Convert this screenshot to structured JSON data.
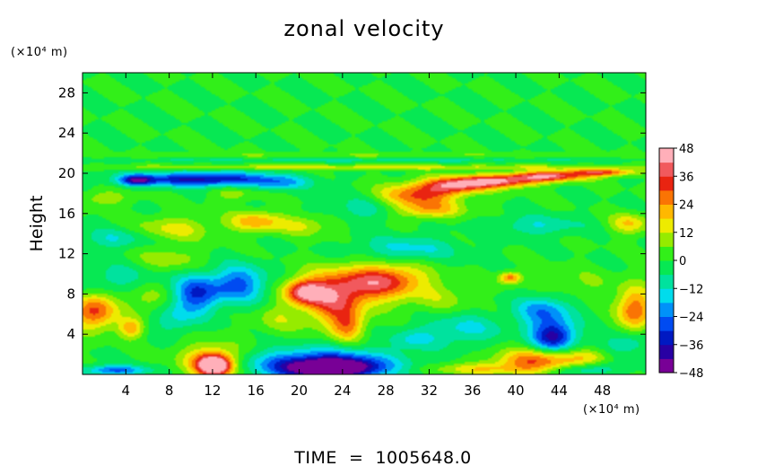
{
  "chart_data": {
    "type": "heatmap",
    "title": "zonal velocity",
    "ylabel": "Height",
    "y_unit": "(×10⁴ m)",
    "x_unit": "(×10⁴ m)",
    "footer": "TIME  =  1005648.0",
    "xlim": [
      0,
      52
    ],
    "ylim": [
      0,
      30
    ],
    "x_ticks": [
      4,
      8,
      12,
      16,
      20,
      24,
      28,
      32,
      36,
      40,
      44,
      48
    ],
    "x_tick_labels": [
      "4",
      "8",
      "12",
      "16",
      "20",
      "24",
      "28",
      "32",
      "36",
      "40",
      "44",
      "48"
    ],
    "y_ticks": [
      4,
      8,
      12,
      16,
      20,
      24,
      28
    ],
    "y_tick_labels": [
      "4",
      "8",
      "12",
      "16",
      "20",
      "24",
      "28"
    ],
    "colorbar": {
      "range": [
        -48,
        48
      ],
      "ticks": [
        48,
        36,
        24,
        12,
        0,
        -12,
        -24,
        -36,
        -48
      ],
      "tick_labels": [
        "48",
        "36",
        "24",
        "12",
        "0",
        "−12",
        "−24",
        "−36",
        "−48"
      ]
    },
    "background_value": 0,
    "features": [
      {
        "x": 23,
        "y": 0.6,
        "rx": 3.5,
        "ry": 0.8,
        "v": -48
      },
      {
        "x": 22,
        "y": 1.0,
        "rx": 7,
        "ry": 1.5,
        "v": -36
      },
      {
        "x": 12.2,
        "y": 0.9,
        "rx": 1.5,
        "ry": 1.0,
        "v": 48
      },
      {
        "x": 12,
        "y": 1.2,
        "rx": 3,
        "ry": 1.8,
        "v": 26
      },
      {
        "x": 3,
        "y": 0.4,
        "rx": 3,
        "ry": 0.5,
        "v": -26
      },
      {
        "x": 42,
        "y": 1.3,
        "rx": 4,
        "ry": 1.2,
        "v": 30
      },
      {
        "x": 36,
        "y": 0.5,
        "rx": 5,
        "ry": 0.6,
        "v": 14
      },
      {
        "x": 46,
        "y": 0.5,
        "rx": 3,
        "ry": 0.6,
        "v": -16
      },
      {
        "x": 47,
        "y": 1.8,
        "rx": 2,
        "ry": 0.8,
        "v": 12
      },
      {
        "x": 25,
        "y": 8.7,
        "rx": 4.5,
        "ry": 2.0,
        "v": 28
      },
      {
        "x": 28.5,
        "y": 9.5,
        "rx": 3.5,
        "ry": 1.5,
        "v": 22
      },
      {
        "x": 23,
        "y": 6.8,
        "rx": 2.5,
        "ry": 2.2,
        "v": 24
      },
      {
        "x": 20.5,
        "y": 8.2,
        "rx": 1.8,
        "ry": 1.2,
        "v": 36
      },
      {
        "x": 24.5,
        "y": 4.8,
        "rx": 1.5,
        "ry": 1.5,
        "v": 22
      },
      {
        "x": 1,
        "y": 6.2,
        "rx": 2,
        "ry": 1.8,
        "v": 32
      },
      {
        "x": 4.5,
        "y": 4.6,
        "rx": 1.2,
        "ry": 1.0,
        "v": 22
      },
      {
        "x": 51,
        "y": 6.5,
        "rx": 1.6,
        "ry": 2.2,
        "v": 30
      },
      {
        "x": 43.5,
        "y": 3.8,
        "rx": 2.0,
        "ry": 1.5,
        "v": -38
      },
      {
        "x": 42.5,
        "y": 6.3,
        "rx": 2.5,
        "ry": 1.5,
        "v": -22
      },
      {
        "x": 10.5,
        "y": 8.0,
        "rx": 2.2,
        "ry": 1.8,
        "v": -30
      },
      {
        "x": 14.5,
        "y": 9.0,
        "rx": 2.5,
        "ry": 1.8,
        "v": -26
      },
      {
        "x": 8.5,
        "y": 5.5,
        "rx": 2.0,
        "ry": 1.5,
        "v": -12
      },
      {
        "x": 3,
        "y": 9.5,
        "rx": 3.5,
        "ry": 1.5,
        "v": -10
      },
      {
        "x": 35,
        "y": 4.5,
        "rx": 3.5,
        "ry": 1.5,
        "v": -14
      },
      {
        "x": 30.5,
        "y": 3.5,
        "rx": 2.0,
        "ry": 1.0,
        "v": -12
      },
      {
        "x": 50,
        "y": 3.0,
        "rx": 2.0,
        "ry": 1.2,
        "v": -14
      },
      {
        "x": 39.5,
        "y": 9.6,
        "rx": 1.0,
        "ry": 0.6,
        "v": 28
      },
      {
        "x": 18,
        "y": 5.5,
        "rx": 2.0,
        "ry": 1.5,
        "v": 10
      },
      {
        "x": 6,
        "y": 7.5,
        "rx": 2.5,
        "ry": 1.5,
        "v": 10
      },
      {
        "x": 33,
        "y": 7.5,
        "rx": 3.0,
        "ry": 1.5,
        "v": 8
      },
      {
        "x": 46,
        "y": 9.0,
        "rx": 3.5,
        "ry": 1.5,
        "v": 6
      },
      {
        "x": 30,
        "y": 12.5,
        "rx": 4.5,
        "ry": 1.2,
        "v": -14
      },
      {
        "x": 8,
        "y": 11.5,
        "rx": 3.0,
        "ry": 1.2,
        "v": 10
      },
      {
        "x": 8.5,
        "y": 14.5,
        "rx": 3.5,
        "ry": 1.2,
        "v": 14
      },
      {
        "x": 16,
        "y": 15.2,
        "rx": 2.5,
        "ry": 1.0,
        "v": 22
      },
      {
        "x": 20.5,
        "y": 14.8,
        "rx": 2.5,
        "ry": 1.0,
        "v": 12
      },
      {
        "x": 3,
        "y": 13.5,
        "rx": 3.0,
        "ry": 1.0,
        "v": -12
      },
      {
        "x": 42,
        "y": 14.8,
        "rx": 4.0,
        "ry": 1.0,
        "v": -12
      },
      {
        "x": 50.5,
        "y": 15.0,
        "rx": 1.8,
        "ry": 1.0,
        "v": 18
      },
      {
        "x": 26,
        "y": 16.5,
        "rx": 3.0,
        "ry": 1.2,
        "v": -10
      },
      {
        "x": 31,
        "y": 17.8,
        "rx": 3.5,
        "ry": 1.2,
        "v": 30
      },
      {
        "x": 34.5,
        "y": 18.8,
        "rx": 3.0,
        "ry": 0.8,
        "v": 36
      },
      {
        "x": 38.5,
        "y": 19.2,
        "rx": 3.5,
        "ry": 0.6,
        "v": 38
      },
      {
        "x": 43,
        "y": 19.7,
        "rx": 3.5,
        "ry": 0.5,
        "v": 40
      },
      {
        "x": 48,
        "y": 20.1,
        "rx": 3.0,
        "ry": 0.35,
        "v": 34
      },
      {
        "x": 32,
        "y": 16.3,
        "rx": 3.0,
        "ry": 0.8,
        "v": 18
      },
      {
        "x": 11,
        "y": 19.4,
        "rx": 6.5,
        "ry": 0.7,
        "v": -38
      },
      {
        "x": 5,
        "y": 19.3,
        "rx": 1.5,
        "ry": 0.5,
        "v": -30
      },
      {
        "x": 18,
        "y": 19.0,
        "rx": 3.0,
        "ry": 0.7,
        "v": -14
      },
      {
        "x": 14,
        "y": 18.0,
        "rx": 2.0,
        "ry": 0.8,
        "v": 10
      },
      {
        "x": 2,
        "y": 17.5,
        "rx": 2.5,
        "ry": 0.8,
        "v": 10
      },
      {
        "x": 26,
        "y": 20.6,
        "rx": 26,
        "ry": 0.25,
        "v": 14
      },
      {
        "x": 26,
        "y": 21.3,
        "rx": 26,
        "ry": 0.2,
        "v": -8
      },
      {
        "x": 26,
        "y": 21.8,
        "rx": 26,
        "ry": 0.2,
        "v": 6
      }
    ]
  }
}
